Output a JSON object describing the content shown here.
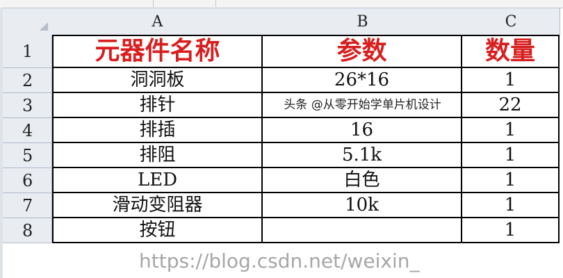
{
  "columns": [
    "A",
    "B",
    "C"
  ],
  "rows": [
    {
      "num": "1",
      "a": "元器件名称",
      "b": "参数",
      "c": "数量"
    },
    {
      "num": "2",
      "a": "洞洞板",
      "b": "26*16",
      "c": "1"
    },
    {
      "num": "3",
      "a": "排针",
      "b": "",
      "c": "22"
    },
    {
      "num": "4",
      "a": "排插",
      "b": "16",
      "c": "1"
    },
    {
      "num": "5",
      "a": "排阻",
      "b": "5.1k",
      "c": "1"
    },
    {
      "num": "6",
      "a": "LED",
      "b": "白色",
      "c": "1"
    },
    {
      "num": "7",
      "a": "滑动变阻器",
      "b": "10k",
      "c": "1"
    },
    {
      "num": "8",
      "a": "按钮",
      "b": "",
      "c": "1"
    }
  ],
  "watermark_url": "https://blog.csdn.net/weixin_",
  "watermark_credit": "头条 @从零开始学单片机设计",
  "colors": {
    "header_text": "#d81e1e",
    "header_bg": "#e9edf2"
  }
}
